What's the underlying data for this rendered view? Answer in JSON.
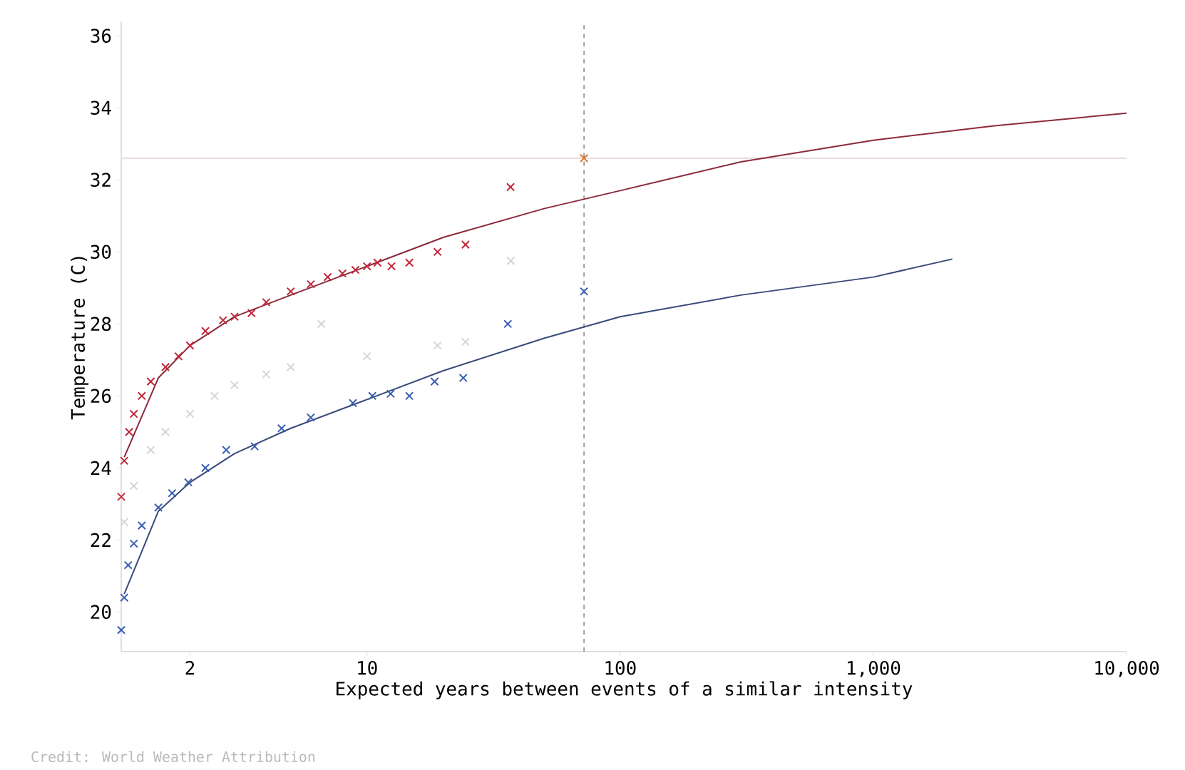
{
  "chart_data": {
    "type": "scatter",
    "xlabel": "Expected years between events of a similar intensity",
    "ylabel": "Temperature (C)",
    "log": "x",
    "marker": "cross",
    "grid": false,
    "xlim": [
      1.07,
      10000
    ],
    "ylim": [
      18.9,
      36.4
    ],
    "xticks": [
      2,
      10,
      100,
      {
        "value": 1000,
        "label": "1,000"
      },
      {
        "value": 10000,
        "label": "10,000"
      }
    ],
    "yticks": [
      20,
      22,
      24,
      26,
      28,
      30,
      32,
      34,
      36
    ],
    "ref_lines": [
      {
        "axis": "x",
        "value": 72,
        "color": "#999999",
        "line_style": "dashed"
      },
      {
        "axis": "y",
        "value": 32.6,
        "color": "#eadede",
        "line_style": "solid"
      }
    ],
    "annotations": [
      "Credit: World Weather Attribution"
    ],
    "series": [
      {
        "color": "#d6d6d6",
        "x": [
          1.1,
          1.2,
          1.4,
          1.6,
          2,
          2.5,
          3,
          4,
          5,
          6.6,
          10,
          19,
          24.5,
          37
        ],
        "values": [
          22.5,
          23.5,
          24.5,
          25,
          25.5,
          26,
          26.3,
          26.6,
          26.8,
          28.0,
          27.1,
          27.4,
          27.5,
          29.75
        ]
      },
      {
        "color": "#c0283a",
        "x": [
          1.07,
          1.1,
          1.15,
          1.2,
          1.29,
          1.4,
          1.6,
          1.8,
          2,
          2.3,
          2.7,
          3,
          3.5,
          4,
          5,
          6,
          7,
          8,
          9,
          10,
          11,
          12.5,
          14.7,
          19,
          24.5,
          36.9
        ],
        "values": [
          23.2,
          24.2,
          25,
          25.5,
          26,
          26.4,
          26.8,
          27.1,
          27.4,
          27.8,
          28.1,
          28.2,
          28.3,
          28.6,
          28.9,
          29.1,
          29.3,
          29.4,
          29.5,
          29.6,
          29.7,
          29.6,
          29.7,
          30.0,
          30.2,
          31.8
        ]
      },
      {
        "color": "#3a5fb0",
        "x": [
          1.07,
          1.1,
          1.14,
          1.2,
          1.29,
          1.5,
          1.7,
          1.97,
          2.3,
          2.78,
          3.6,
          4.6,
          6,
          8.8,
          10.5,
          12.4,
          14.7,
          18.5,
          24,
          36,
          72
        ],
        "values": [
          19.5,
          20.4,
          21.3,
          21.9,
          22.4,
          22.9,
          23.3,
          23.6,
          24.0,
          24.5,
          24.6,
          25.1,
          25.4,
          25.8,
          26.0,
          26.06,
          26.0,
          26.4,
          26.5,
          28.0,
          28.9
        ]
      },
      {
        "color": "#d9772b",
        "x": [
          72
        ],
        "values": [
          32.6
        ]
      },
      {
        "type": "line",
        "marker": "none",
        "color": "#8b2a3a",
        "x": [
          1.1,
          1.5,
          2,
          3,
          5,
          10,
          20,
          50,
          100,
          300,
          1000,
          3000,
          10000
        ],
        "values": [
          24.3,
          26.5,
          27.4,
          28.2,
          28.8,
          29.6,
          30.4,
          31.2,
          31.7,
          32.5,
          33.1,
          33.5,
          33.85
        ]
      },
      {
        "type": "line",
        "marker": "none",
        "color": "#3a4a7a",
        "x": [
          1.1,
          1.5,
          2,
          3,
          5,
          10,
          20,
          50,
          100,
          300,
          1000,
          2050
        ],
        "values": [
          20.5,
          22.8,
          23.6,
          24.4,
          25.1,
          25.9,
          26.7,
          27.6,
          28.2,
          28.8,
          29.3,
          29.8
        ]
      }
    ]
  }
}
